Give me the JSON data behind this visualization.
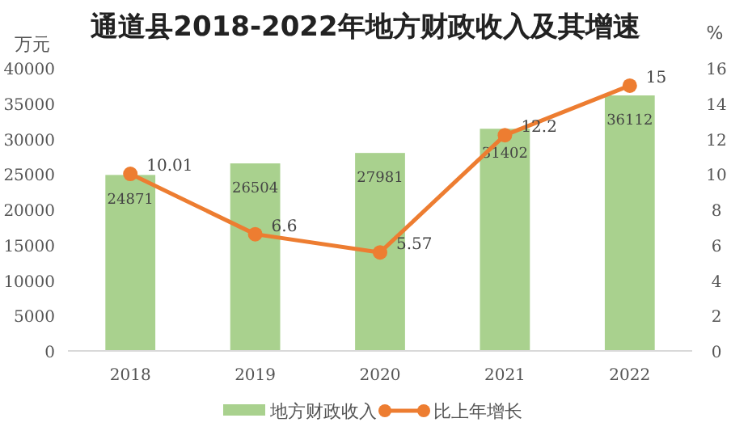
{
  "chart_data": {
    "type": "bar",
    "title": "通道县2018-2022年地方财政收入及其增速",
    "ylabel": "万元",
    "y2label": "%",
    "categories": [
      "2018",
      "2019",
      "2020",
      "2021",
      "2022"
    ],
    "series": [
      {
        "name": "地方财政收入",
        "color": "#a9d18e",
        "values": [
          24871,
          26504,
          27981,
          31402,
          36112
        ]
      },
      {
        "name": "比上年增长",
        "type": "line",
        "axis": "y2",
        "color": "#ed7d31",
        "marker": "circle",
        "values": [
          10.01,
          6.6,
          5.57,
          12.2,
          15
        ]
      }
    ],
    "ylim": [
      0,
      40000
    ],
    "yticks": [
      0,
      5000,
      10000,
      15000,
      20000,
      25000,
      30000,
      35000,
      40000
    ],
    "y2lim": [
      0,
      16
    ],
    "y2ticks": [
      0,
      2,
      4,
      6,
      8,
      10,
      12,
      14,
      16
    ],
    "data_labels": true,
    "legend": "bottom"
  }
}
